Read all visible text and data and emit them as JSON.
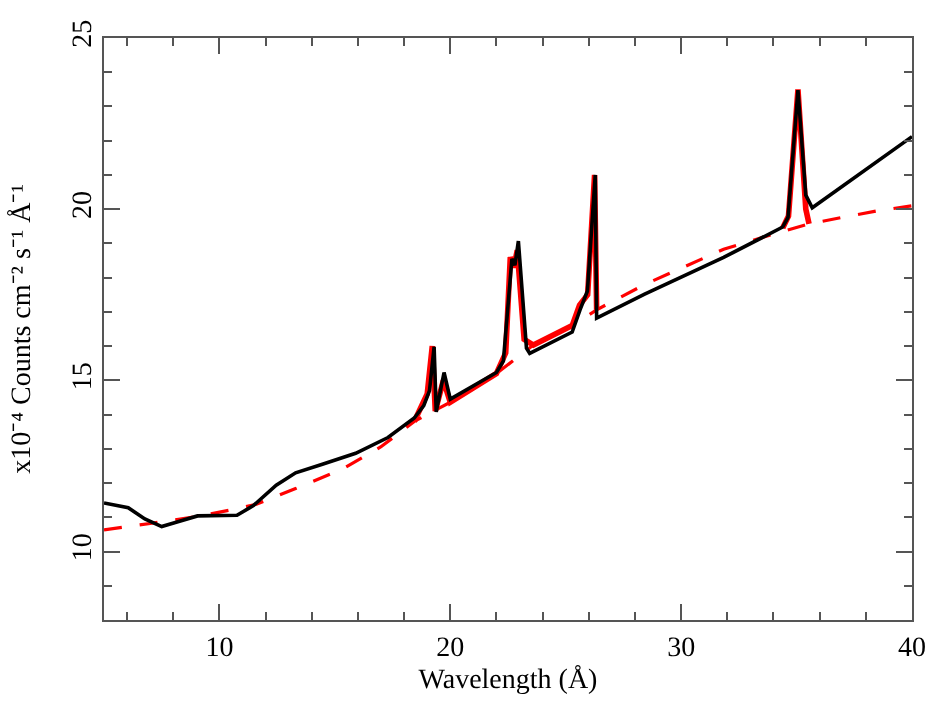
{
  "chart_data": {
    "type": "line",
    "xlabel": "Wavelength (Å)",
    "ylabel": "x10⁻⁴ Counts cm⁻² s⁻¹ Å⁻¹",
    "xlim": [
      5,
      40
    ],
    "ylim": [
      8,
      25
    ],
    "xticks": [
      10,
      20,
      30,
      40
    ],
    "yticks": [
      10,
      15,
      20,
      25
    ],
    "legend": false,
    "marker": "none",
    "series": [
      {
        "color": "#ff0000",
        "line_style": "dashed",
        "x": [
          5,
          7,
          9,
          10.76,
          11.6,
          13.3,
          15.3,
          17.0,
          18.44,
          20.0,
          22.0,
          23.6,
          25.28,
          26.34,
          28.42,
          31.84,
          34.1,
          35.54,
          36.97,
          38.5,
          40
        ],
        "values": [
          10.63,
          10.82,
          11.02,
          11.25,
          11.38,
          11.84,
          12.4,
          13.06,
          13.8,
          14.36,
          15.2,
          16.03,
          16.6,
          17.06,
          17.8,
          18.83,
          19.29,
          19.57,
          19.76,
          19.95,
          20.1
        ]
      },
      {
        "color": "#ff0000",
        "line_style": "solid",
        "x": [
          18.44,
          19.0,
          19.22,
          19.35,
          19.7,
          20.0,
          22.0,
          22.4,
          22.6,
          22.75,
          22.9,
          23.2,
          23.6,
          25.28,
          25.6,
          25.95,
          26.25,
          26.34,
          null,
          34.4,
          34.65,
          35.06,
          35.4,
          35.54
        ],
        "values": [
          13.8,
          14.6,
          16.0,
          14.1,
          15.0,
          14.36,
          15.2,
          15.8,
          18.6,
          18.3,
          18.8,
          16.2,
          16.03,
          16.6,
          17.2,
          17.5,
          21.0,
          17.06,
          null,
          19.45,
          19.8,
          23.5,
          20.0,
          19.57
        ]
      },
      {
        "color": "#000000",
        "line_style": "solid",
        "x": [
          5,
          6.05,
          6.77,
          7.5,
          8.2,
          9.05,
          10.76,
          11.47,
          12.46,
          13.3,
          14.46,
          15.9,
          17.3,
          18.44,
          18.85,
          19.1,
          19.3,
          19.39,
          19.73,
          20.0,
          22.0,
          22.3,
          22.67,
          22.8,
          22.95,
          23.3,
          23.44,
          25.28,
          25.62,
          25.94,
          26.28,
          26.34,
          28.42,
          31.84,
          34.4,
          34.63,
          35.06,
          35.4,
          35.68,
          40
        ],
        "values": [
          11.42,
          11.28,
          10.95,
          10.73,
          10.87,
          11.04,
          11.06,
          11.34,
          11.94,
          12.3,
          12.55,
          12.87,
          13.33,
          13.9,
          14.26,
          14.7,
          15.98,
          14.08,
          15.23,
          14.45,
          15.23,
          15.57,
          18.55,
          18.36,
          19.07,
          15.94,
          15.79,
          16.41,
          17.06,
          17.61,
          21.0,
          16.82,
          17.52,
          18.59,
          19.48,
          19.76,
          23.48,
          20.41,
          20.04,
          22.12
        ]
      }
    ]
  }
}
